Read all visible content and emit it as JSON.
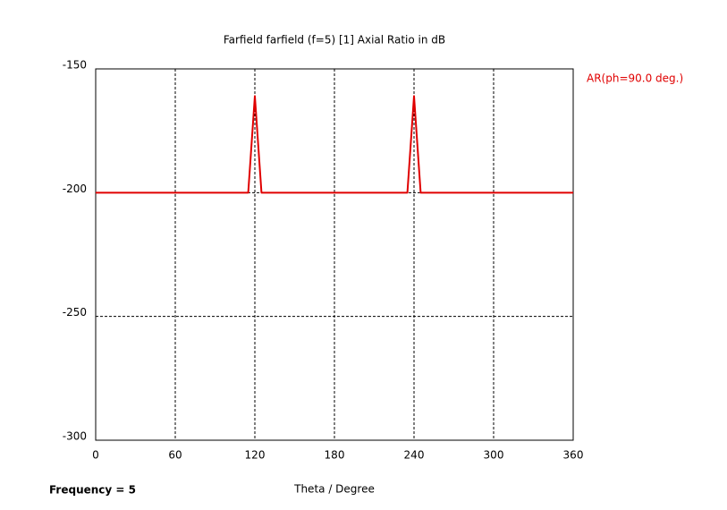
{
  "chart_data": {
    "type": "line",
    "title": "Farfield farfield (f=5) [1] Axial Ratio in dB",
    "x_label": "Theta / Degree",
    "annotations": [
      "Frequency = 5"
    ],
    "x": [
      0,
      115,
      120,
      125,
      235,
      240,
      245,
      360
    ],
    "series": [
      {
        "name": "AR(ph=90.0 deg.)",
        "color": "#e00000",
        "values": [
          -200,
          -200,
          -161,
          -200,
          -200,
          -161,
          -200,
          -200
        ]
      }
    ],
    "xlim": [
      0,
      360
    ],
    "xticks": [
      0,
      60,
      120,
      180,
      240,
      300,
      360
    ],
    "ylim": [
      -300,
      -150
    ],
    "yticks": [
      -300,
      -250,
      -200,
      -150
    ],
    "grid": true,
    "legend": "right"
  }
}
